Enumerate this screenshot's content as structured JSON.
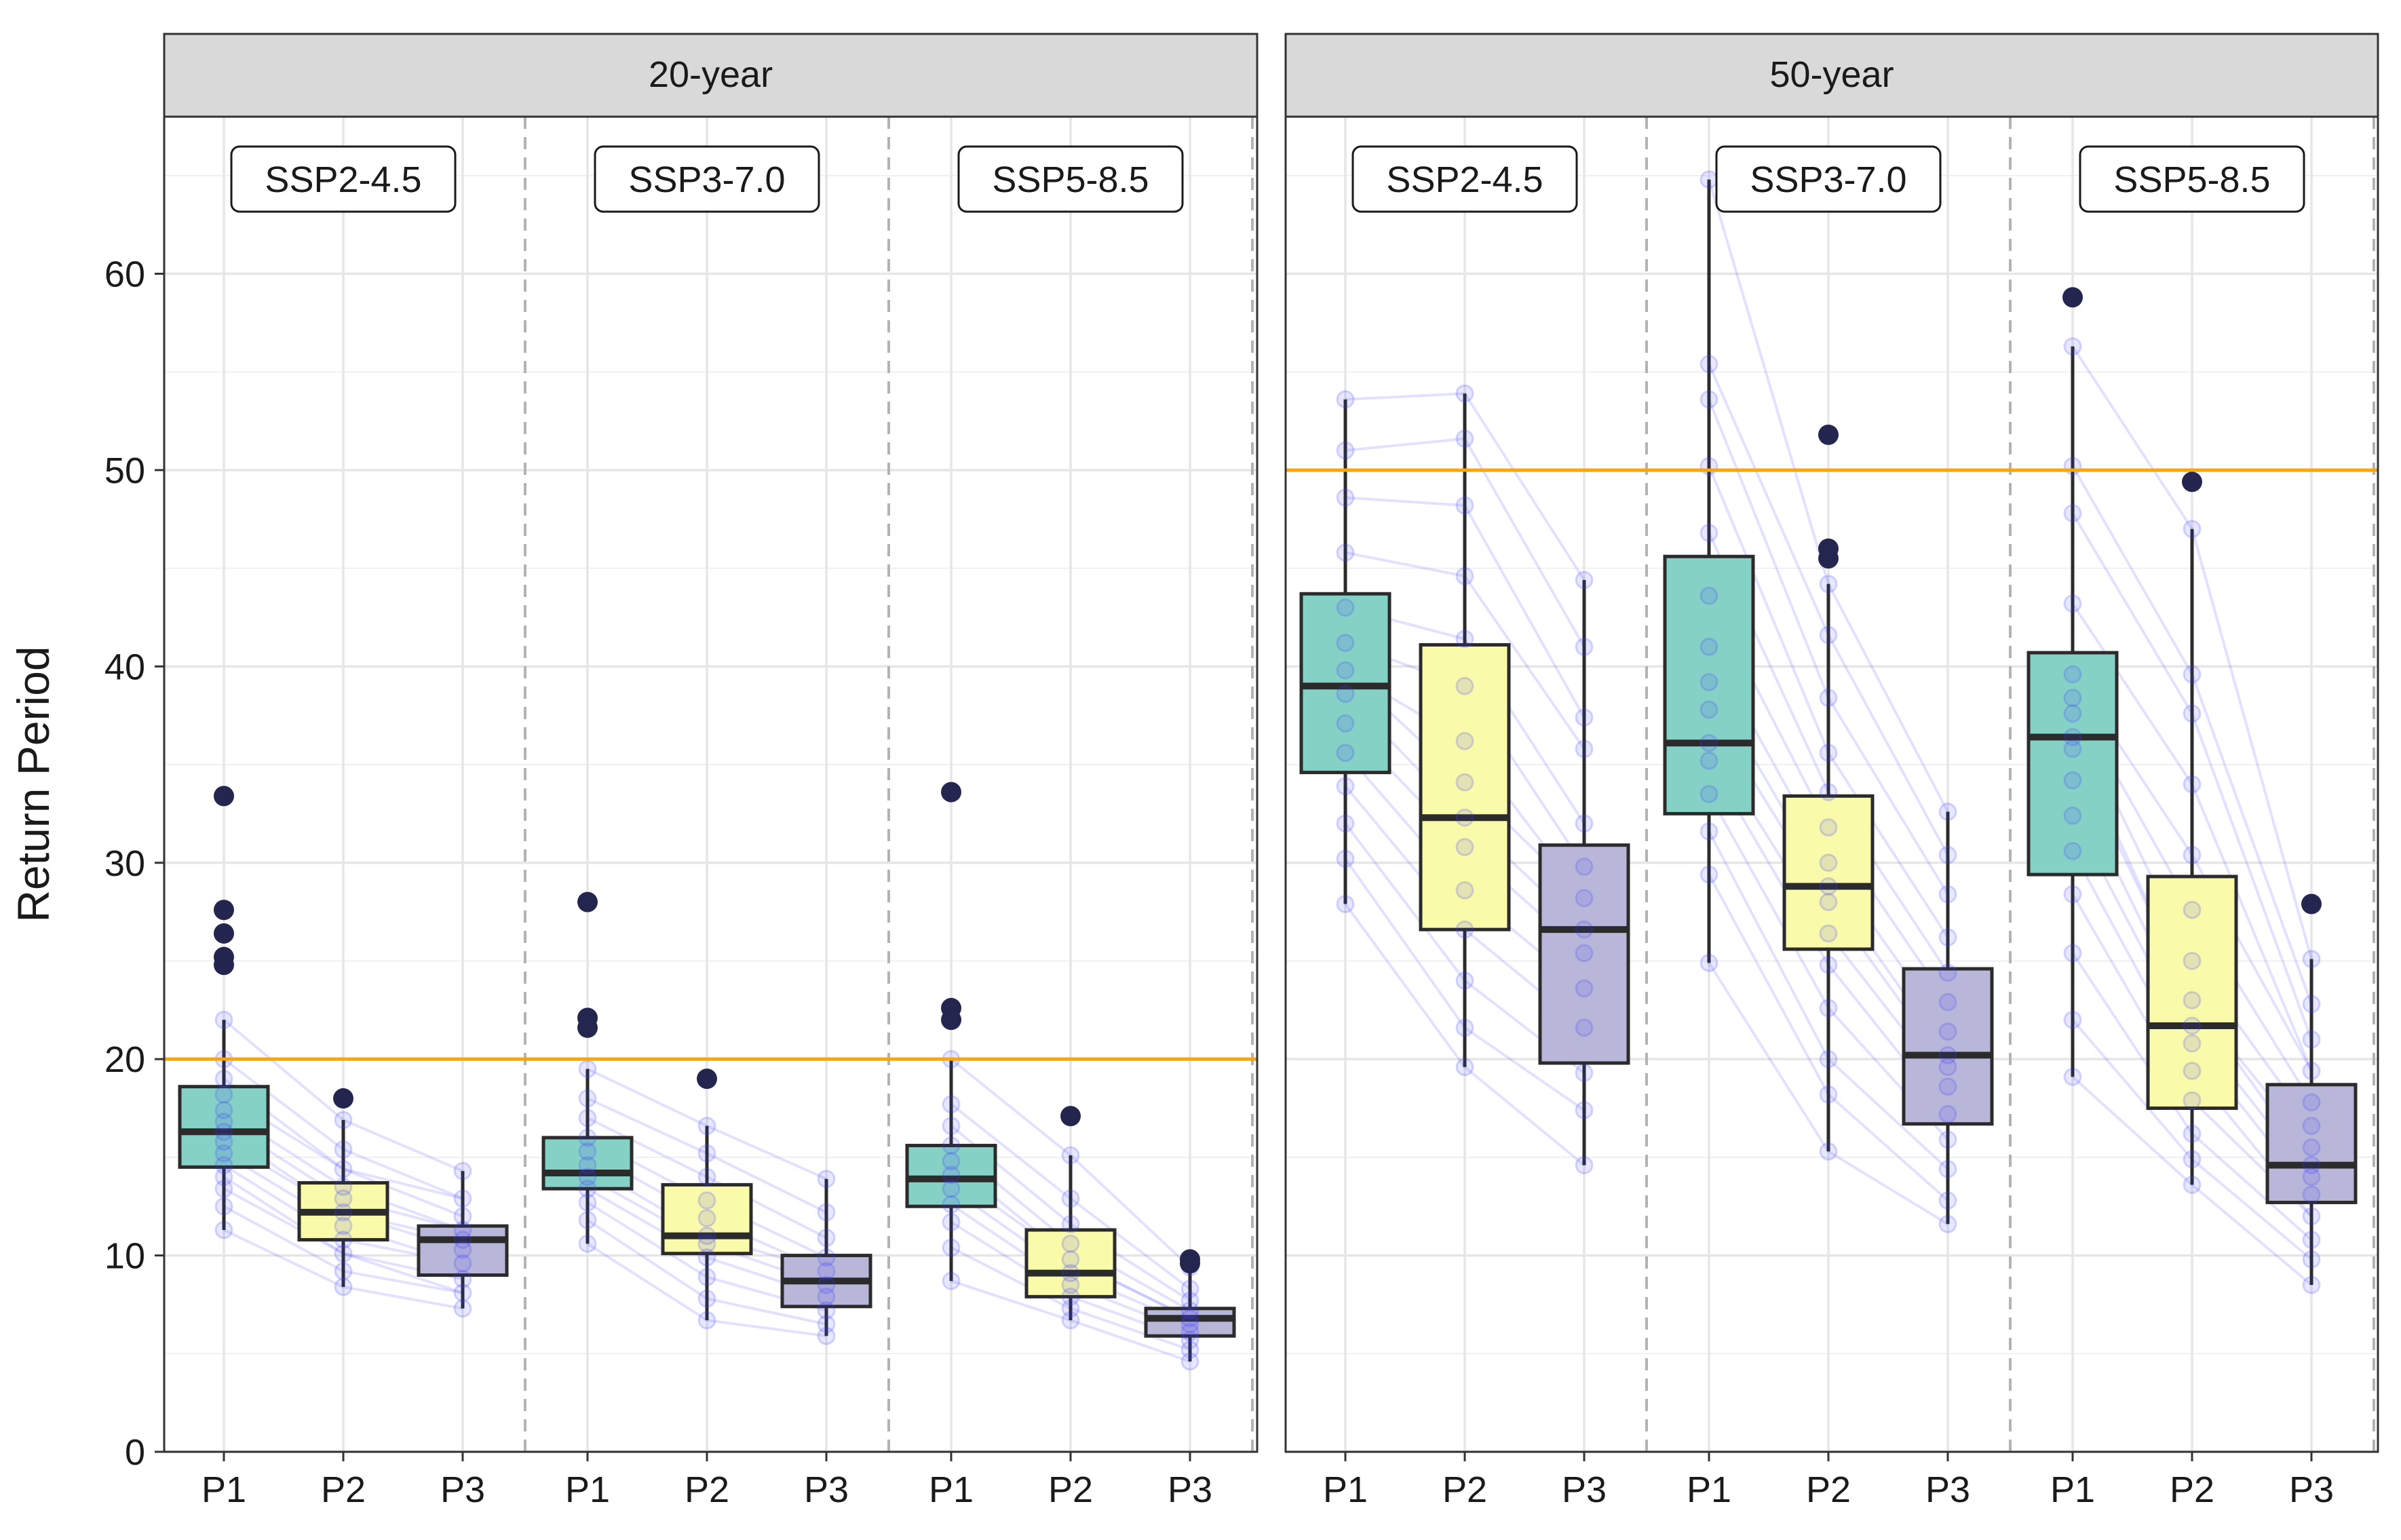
{
  "chart_data": {
    "type": "boxplot",
    "ylabel": "Return Period",
    "ylim": [
      0,
      68
    ],
    "yticks": [
      0,
      10,
      20,
      30,
      40,
      50,
      60
    ],
    "grid": true,
    "colors": {
      "P1": "#86d1c6",
      "P2": "#fafaab",
      "P3": "#b9b7d9",
      "threshold": "#ffa500",
      "member_lines": "#3b3bff",
      "outlier": "#24264f",
      "box_edge": "#2b2b2b"
    },
    "panels": [
      {
        "title": "20-year",
        "threshold": 20,
        "scenarios": [
          {
            "name": "SSP2-4.5",
            "periods": [
              {
                "label": "P1",
                "q1": 14.5,
                "median": 16.3,
                "q3": 18.6,
                "whisker_low": 11.3,
                "whisker_high": 22.0,
                "outliers": [
                  33.4,
                  27.6,
                  26.4,
                  25.2,
                  24.8
                ],
                "points": [
                  11.3,
                  12.5,
                  13.4,
                  14.0,
                  14.6,
                  15.2,
                  15.8,
                  16.3,
                  16.8,
                  17.4,
                  18.2,
                  19.0,
                  20.0,
                  22.0
                ]
              },
              {
                "label": "P2",
                "q1": 10.8,
                "median": 12.2,
                "q3": 13.7,
                "whisker_low": 8.4,
                "whisker_high": 16.9,
                "outliers": [
                  18.0
                ],
                "points": [
                  8.4,
                  9.2,
                  10.1,
                  10.8,
                  11.5,
                  12.2,
                  12.9,
                  13.5,
                  14.4,
                  15.4,
                  16.9
                ]
              },
              {
                "label": "P3",
                "q1": 9.0,
                "median": 10.8,
                "q3": 11.5,
                "whisker_low": 7.3,
                "whisker_high": 14.3,
                "outliers": [],
                "points": [
                  7.3,
                  8.1,
                  8.8,
                  9.6,
                  10.3,
                  10.8,
                  11.3,
                  12.0,
                  12.9,
                  14.3
                ]
              }
            ]
          },
          {
            "name": "SSP3-7.0",
            "periods": [
              {
                "label": "P1",
                "q1": 13.4,
                "median": 14.2,
                "q3": 16.0,
                "whisker_low": 10.6,
                "whisker_high": 19.5,
                "outliers": [
                  28.0,
                  22.1,
                  21.6
                ],
                "points": [
                  10.6,
                  11.8,
                  12.7,
                  13.4,
                  14.0,
                  14.6,
                  15.3,
                  16.0,
                  17.0,
                  18.0,
                  19.5
                ]
              },
              {
                "label": "P2",
                "q1": 10.1,
                "median": 11.0,
                "q3": 13.6,
                "whisker_low": 6.7,
                "whisker_high": 16.6,
                "outliers": [
                  19.0
                ],
                "points": [
                  6.7,
                  7.8,
                  8.9,
                  9.9,
                  10.6,
                  11.0,
                  11.9,
                  12.8,
                  14.0,
                  15.2,
                  16.6
                ]
              },
              {
                "label": "P3",
                "q1": 7.4,
                "median": 8.7,
                "q3": 10.0,
                "whisker_low": 5.9,
                "whisker_high": 13.9,
                "outliers": [],
                "points": [
                  5.9,
                  6.5,
                  7.2,
                  7.9,
                  8.5,
                  9.2,
                  9.9,
                  10.9,
                  12.2,
                  13.9
                ]
              }
            ]
          },
          {
            "name": "SSP5-8.5",
            "periods": [
              {
                "label": "P1",
                "q1": 12.5,
                "median": 13.9,
                "q3": 15.6,
                "whisker_low": 8.7,
                "whisker_high": 20.0,
                "outliers": [
                  33.6,
                  22.6,
                  22.0
                ],
                "points": [
                  8.7,
                  10.4,
                  11.7,
                  12.6,
                  13.4,
                  14.1,
                  14.8,
                  15.6,
                  16.6,
                  17.7,
                  20.0
                ]
              },
              {
                "label": "P2",
                "q1": 7.9,
                "median": 9.1,
                "q3": 11.3,
                "whisker_low": 6.7,
                "whisker_high": 15.1,
                "outliers": [
                  17.1
                ],
                "points": [
                  6.7,
                  7.3,
                  7.9,
                  8.5,
                  9.1,
                  9.8,
                  10.6,
                  11.6,
                  12.9,
                  15.1
                ]
              },
              {
                "label": "P3",
                "q1": 5.9,
                "median": 6.8,
                "q3": 7.3,
                "whisker_low": 4.6,
                "whisker_high": 9.4,
                "outliers": [
                  9.8,
                  9.6
                ],
                "points": [
                  4.6,
                  5.2,
                  5.7,
                  6.1,
                  6.5,
                  6.8,
                  7.2,
                  7.7,
                  8.3,
                  9.4
                ]
              }
            ]
          }
        ]
      },
      {
        "title": "50-year",
        "threshold": 50,
        "scenarios": [
          {
            "name": "SSP2-4.5",
            "periods": [
              {
                "label": "P1",
                "q1": 34.6,
                "median": 39.0,
                "q3": 43.7,
                "whisker_low": 27.9,
                "whisker_high": 53.6,
                "outliers": [],
                "points": [
                  27.9,
                  30.2,
                  32.0,
                  33.9,
                  35.6,
                  37.1,
                  38.6,
                  39.8,
                  41.2,
                  43.0,
                  45.8,
                  48.6,
                  51.0,
                  53.6
                ]
              },
              {
                "label": "P2",
                "q1": 26.6,
                "median": 32.3,
                "q3": 41.1,
                "whisker_low": 19.6,
                "whisker_high": 53.9,
                "outliers": [],
                "points": [
                  19.6,
                  21.6,
                  24.0,
                  26.6,
                  28.6,
                  30.8,
                  32.3,
                  34.1,
                  36.2,
                  39.0,
                  41.4,
                  44.6,
                  48.2,
                  51.6,
                  53.9
                ]
              },
              {
                "label": "P3",
                "q1": 19.8,
                "median": 26.6,
                "q3": 30.9,
                "whisker_low": 14.6,
                "whisker_high": 44.4,
                "outliers": [],
                "points": [
                  14.6,
                  17.4,
                  19.3,
                  21.6,
                  23.6,
                  25.4,
                  26.6,
                  28.2,
                  29.8,
                  32.0,
                  35.8,
                  37.4,
                  41.0,
                  44.4
                ]
              }
            ]
          },
          {
            "name": "SSP3-7.0",
            "periods": [
              {
                "label": "P1",
                "q1": 32.5,
                "median": 36.1,
                "q3": 45.6,
                "whisker_low": 24.9,
                "whisker_high": 64.8,
                "outliers": [],
                "points": [
                  24.9,
                  29.4,
                  31.6,
                  33.5,
                  35.2,
                  36.1,
                  37.8,
                  39.2,
                  41.0,
                  43.6,
                  46.8,
                  50.2,
                  53.6,
                  55.4,
                  64.8
                ]
              },
              {
                "label": "P2",
                "q1": 25.6,
                "median": 28.8,
                "q3": 33.4,
                "whisker_low": 15.3,
                "whisker_high": 44.2,
                "outliers": [
                  51.8,
                  46.0,
                  45.5
                ],
                "points": [
                  15.3,
                  18.2,
                  20.0,
                  22.6,
                  24.8,
                  26.4,
                  28.0,
                  28.8,
                  30.0,
                  31.8,
                  33.6,
                  35.6,
                  38.4,
                  41.6,
                  44.2
                ]
              },
              {
                "label": "P3",
                "q1": 16.7,
                "median": 20.2,
                "q3": 24.6,
                "whisker_low": 11.6,
                "whisker_high": 32.6,
                "outliers": [],
                "points": [
                  11.6,
                  12.8,
                  14.4,
                  15.9,
                  17.2,
                  18.6,
                  19.6,
                  20.2,
                  21.4,
                  22.9,
                  24.4,
                  26.2,
                  28.4,
                  30.4,
                  32.6
                ]
              }
            ]
          },
          {
            "name": "SSP5-8.5",
            "periods": [
              {
                "label": "P1",
                "q1": 29.4,
                "median": 36.4,
                "q3": 40.7,
                "whisker_low": 19.1,
                "whisker_high": 56.3,
                "outliers": [
                  58.8
                ],
                "points": [
                  19.1,
                  22.0,
                  25.4,
                  28.4,
                  30.6,
                  32.4,
                  34.2,
                  35.8,
                  36.4,
                  37.6,
                  38.4,
                  39.6,
                  43.2,
                  47.8,
                  50.2,
                  56.3
                ]
              },
              {
                "label": "P2",
                "q1": 17.5,
                "median": 21.7,
                "q3": 29.3,
                "whisker_low": 13.6,
                "whisker_high": 47.0,
                "outliers": [
                  49.4
                ],
                "points": [
                  13.6,
                  14.9,
                  16.2,
                  17.9,
                  19.4,
                  20.8,
                  21.7,
                  23.0,
                  25.0,
                  27.6,
                  30.4,
                  34.0,
                  37.6,
                  39.6,
                  47.0
                ]
              },
              {
                "label": "P3",
                "q1": 12.7,
                "median": 14.6,
                "q3": 18.7,
                "whisker_low": 8.5,
                "whisker_high": 25.1,
                "outliers": [
                  27.9
                ],
                "points": [
                  8.5,
                  9.8,
                  10.8,
                  12.0,
                  13.1,
                  14.0,
                  14.6,
                  15.5,
                  16.6,
                  17.8,
                  19.4,
                  21.0,
                  22.8,
                  25.1
                ]
              }
            ]
          }
        ]
      }
    ]
  }
}
